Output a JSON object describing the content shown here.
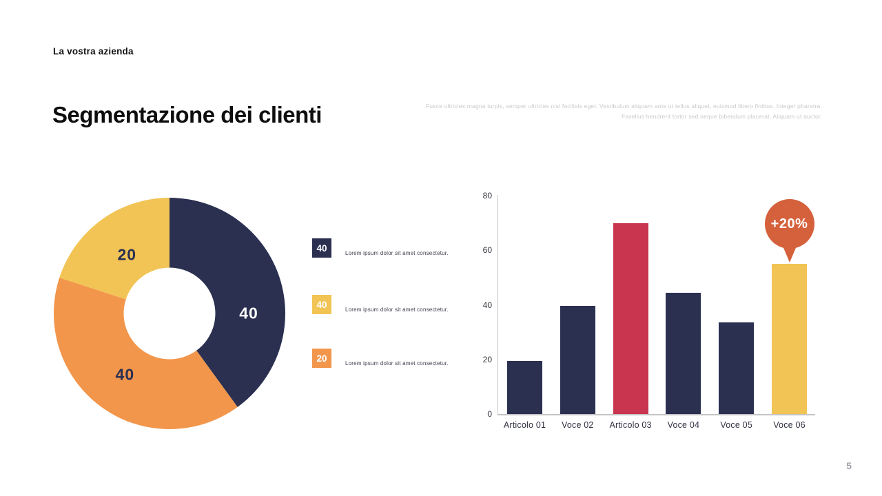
{
  "slide": {
    "brand": "La vostra azienda",
    "title": "Segmentazione dei clienti",
    "intro_line1": "Fusce ultricies magna turpis, semper ultricies nisl facilisis eget. Vestibulum aliquam ante ut tellus aliquet, euismod libero finibus. Integer pharetra.",
    "intro_line2": "Fasellus hendrerit tortor sed neque bibendum placerat. Aliquam ut auctor.",
    "page_number": "5"
  },
  "colors": {
    "navy": "#2B3051",
    "orange": "#F2964B",
    "yellow": "#F2C455",
    "red": "#C9344F",
    "callout": "#D5603C",
    "axis": "#C4C4C4",
    "text_dark": "#121212",
    "text_muted": "#C9CACD",
    "page_number_gray": "#9CA0A6"
  },
  "legend": {
    "items": [
      {
        "value": "40",
        "color": "#2B3051",
        "label": "Lorem ipsum dolor sit amet consectetur."
      },
      {
        "value": "40",
        "color": "#F2C455",
        "label": "Lorem ipsum dolor sit amet consectetur."
      },
      {
        "value": "20",
        "color": "#F2964B",
        "label": "Lorem ipsum dolor sit amet consectetur."
      }
    ]
  },
  "chart_data": [
    {
      "type": "pie",
      "subtype": "donut",
      "title": "",
      "values": [
        40,
        40,
        20
      ],
      "labels": [
        "40",
        "40",
        "20"
      ],
      "colors": [
        "#2B3051",
        "#F2964B",
        "#F2C455"
      ],
      "label_colors": [
        "#FFFFFF",
        "#2B3051",
        "#2B3051"
      ],
      "start_angle_deg": 0,
      "direction": "clockwise",
      "legend_position": "right"
    },
    {
      "type": "bar",
      "title": "",
      "categories": [
        "Articolo 01",
        "Voce 02",
        "Articolo 03",
        "Voce 04",
        "Voce 05",
        "Voce 06"
      ],
      "values": [
        19.5,
        39.5,
        70,
        44.5,
        33.5,
        55
      ],
      "bar_colors": [
        "#2B3051",
        "#2B3051",
        "#C9344F",
        "#2B3051",
        "#2B3051",
        "#F2C455"
      ],
      "xlabel": "",
      "ylabel": "",
      "ylim": [
        0,
        80
      ],
      "yticks": [
        0,
        20,
        40,
        60,
        80
      ],
      "grid": false,
      "annotation": {
        "text": "+20%",
        "target_index": 5,
        "color": "#D5603C",
        "text_color": "#FFFFFF"
      }
    }
  ]
}
